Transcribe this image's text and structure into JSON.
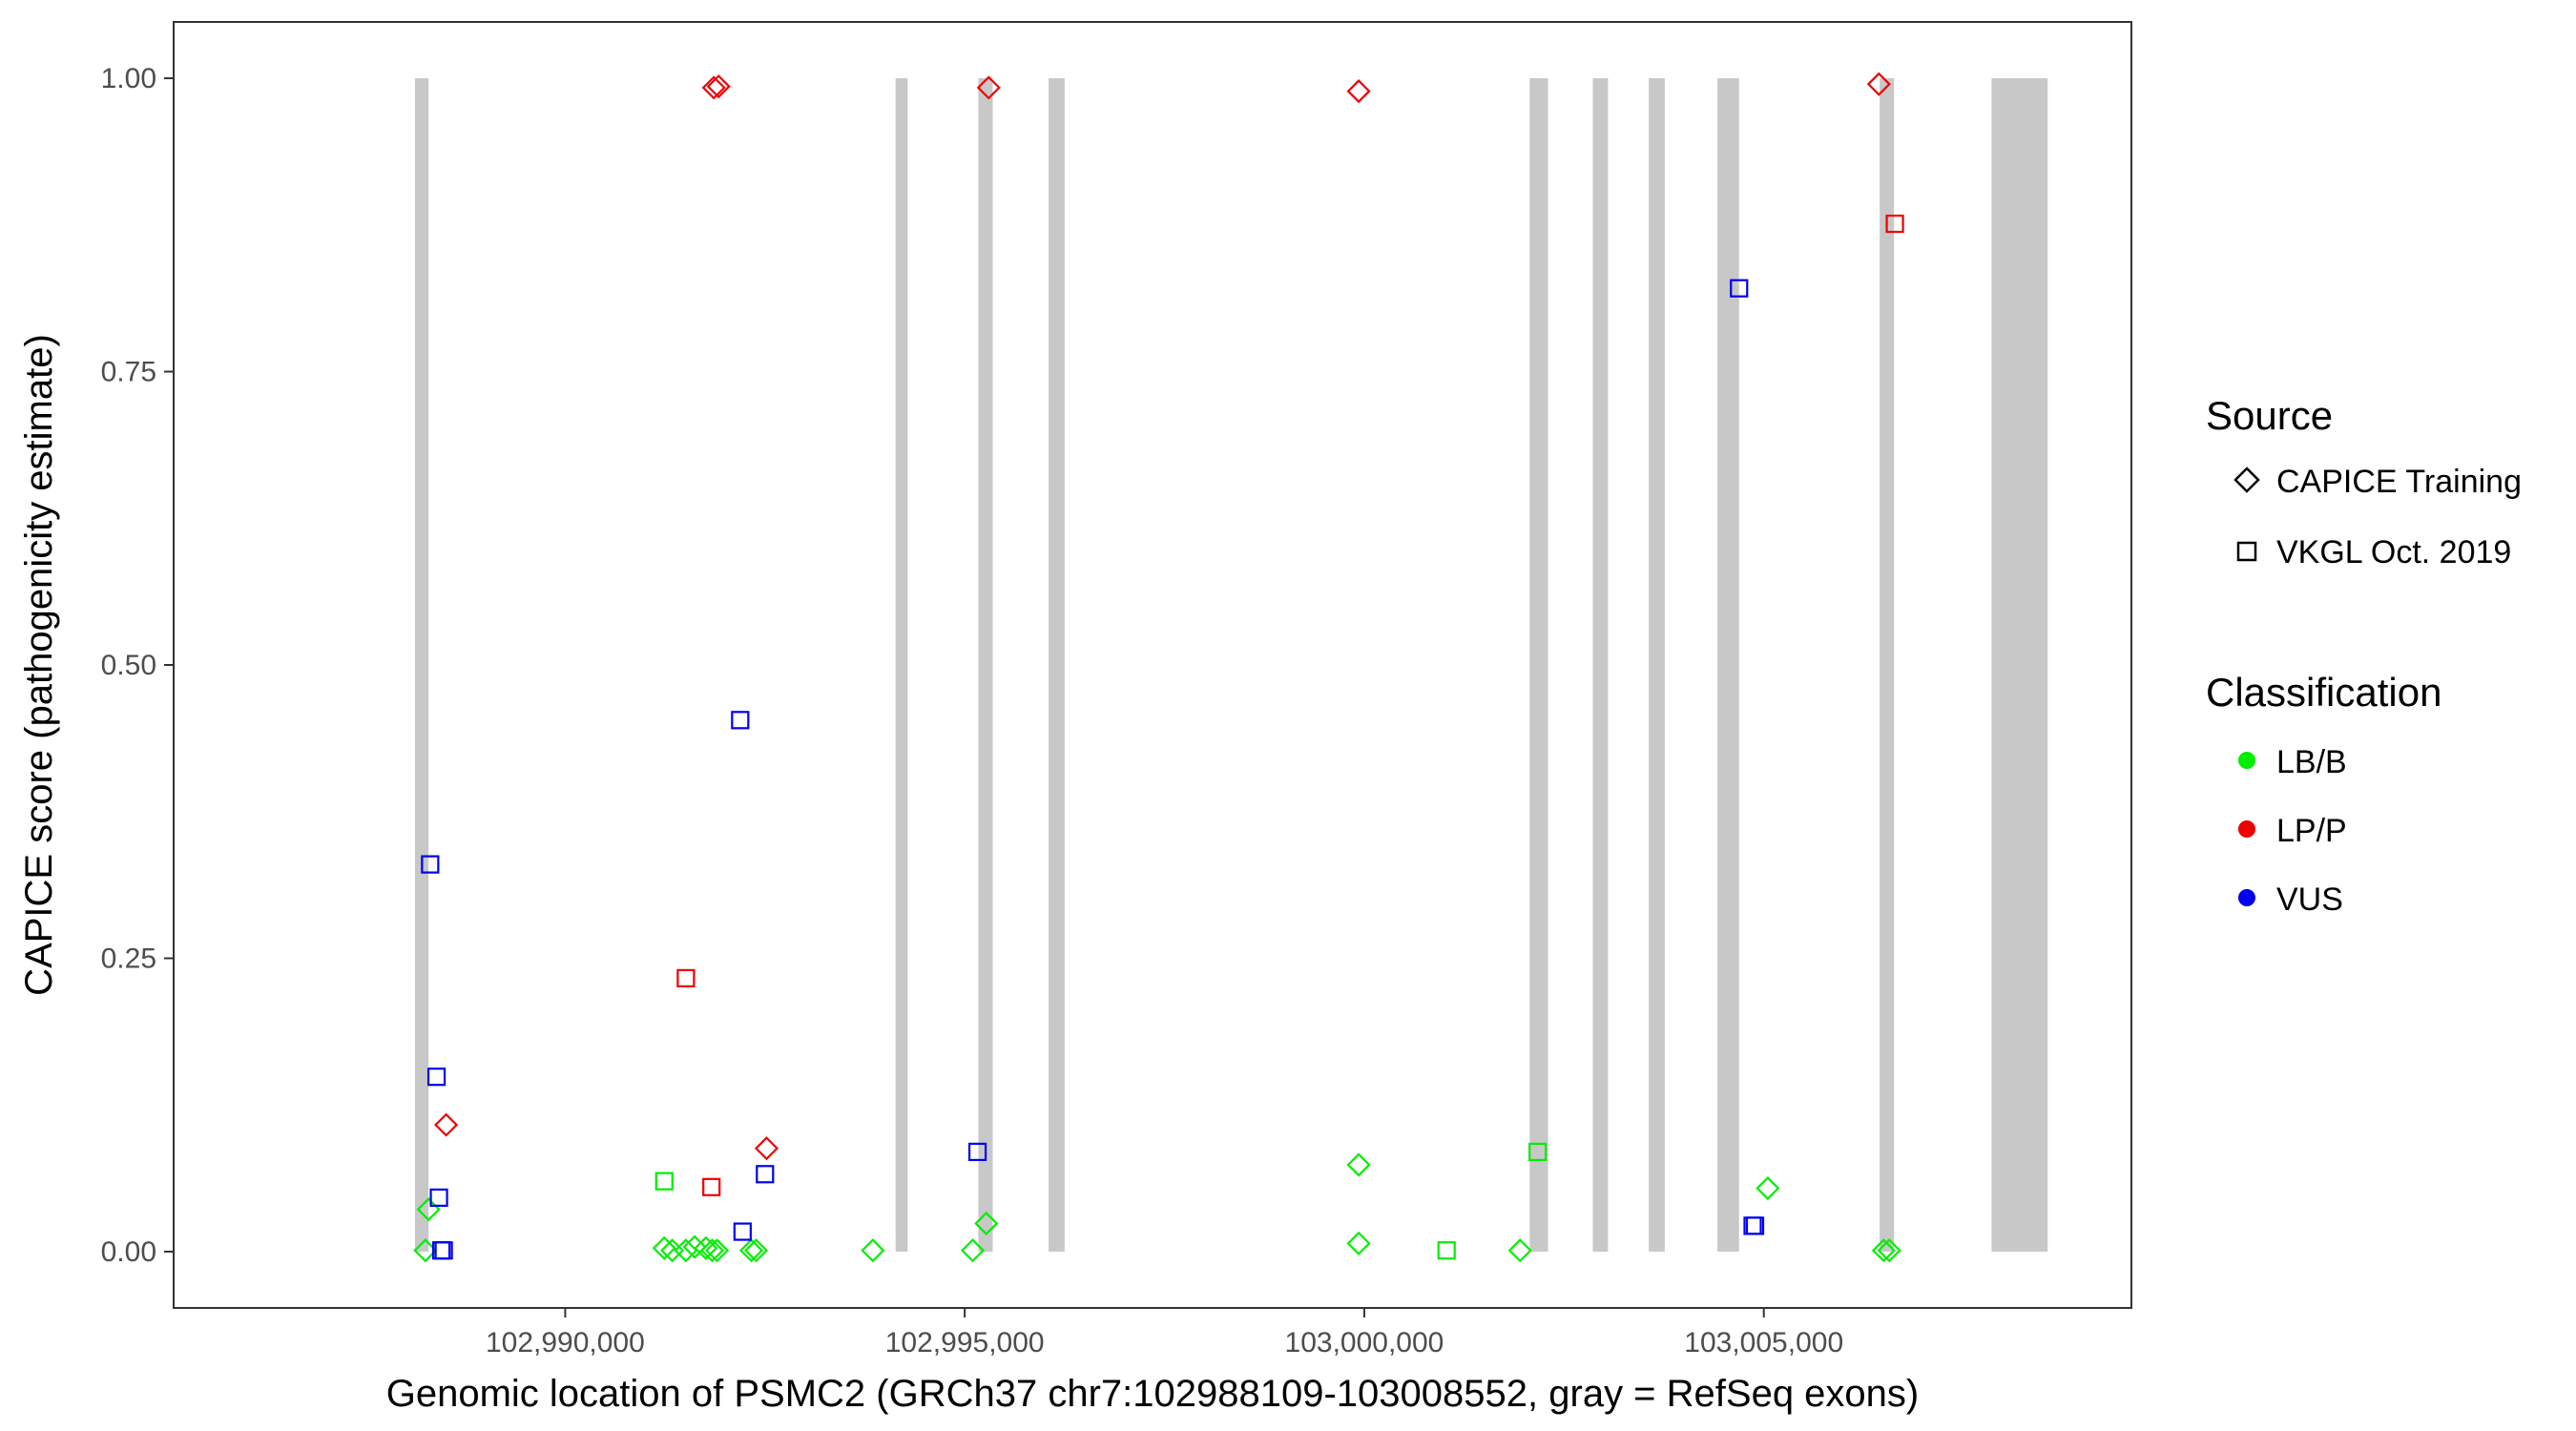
{
  "chart_data": {
    "type": "scatter",
    "title": "",
    "xlabel": "Genomic location of PSMC2 (GRCh37 chr7:102988109-103008552, gray = RefSeq exons)",
    "ylabel": "CAPICE score (pathogenicity estimate)",
    "xlim": [
      102985100,
      103009600
    ],
    "ylim": [
      -0.048,
      1.048
    ],
    "x_ticks": [
      102990000,
      102995000,
      103000000,
      103005000
    ],
    "x_tick_labels": [
      "102,990,000",
      "102,995,000",
      "103,000,000",
      "103,005,000"
    ],
    "y_ticks": [
      0,
      0.25,
      0.5,
      0.75,
      1.0
    ],
    "y_tick_labels": [
      "0.00",
      "0.25",
      "0.50",
      "0.75",
      "1.00"
    ],
    "grid": false,
    "exon_color": "#c8c8c8",
    "exons": [
      [
        102988120,
        102988290
      ],
      [
        102994135,
        102994285
      ],
      [
        102995170,
        102995350
      ],
      [
        102996050,
        102996250
      ],
      [
        103002070,
        103002300
      ],
      [
        103002860,
        103003050
      ],
      [
        103003560,
        103003760
      ],
      [
        103004420,
        103004690
      ],
      [
        103006450,
        103006630
      ],
      [
        103007850,
        103008552
      ]
    ],
    "legend": {
      "placement": "right",
      "source_title": "Source",
      "source_items": [
        {
          "label": "CAPICE Training",
          "shape": "diamond"
        },
        {
          "label": "VKGL Oct. 2019",
          "shape": "square"
        }
      ],
      "class_title": "Classification",
      "class_items": [
        {
          "label": "LB/B",
          "color": "#00ee00"
        },
        {
          "label": "LP/P",
          "color": "#ee0000"
        },
        {
          "label": "VUS",
          "color": "#0000ee"
        }
      ]
    },
    "series": [
      {
        "source": "CAPICE Training",
        "shape": "diamond",
        "class": "LB/B",
        "color": "#00ee00",
        "points": [
          [
            102988250,
            0.001
          ],
          [
            102988290,
            0.036
          ],
          [
            102991240,
            0.003
          ],
          [
            102991340,
            0.001
          ],
          [
            102991510,
            0.001
          ],
          [
            102991620,
            0.004
          ],
          [
            102991760,
            0.003
          ],
          [
            102991840,
            0.001
          ],
          [
            102991900,
            0.001
          ],
          [
            102992330,
            0.001
          ],
          [
            102992390,
            0.001
          ],
          [
            102993850,
            0.001
          ],
          [
            102995100,
            0.001
          ],
          [
            102995270,
            0.024
          ],
          [
            102999930,
            0.007
          ],
          [
            102999930,
            0.074
          ],
          [
            103001950,
            0.001
          ],
          [
            103005050,
            0.054
          ],
          [
            103006500,
            0.001
          ],
          [
            103006570,
            0.001
          ]
        ]
      },
      {
        "source": "CAPICE Training",
        "shape": "diamond",
        "class": "LP/P",
        "color": "#ee0000",
        "points": [
          [
            102988510,
            0.108
          ],
          [
            102991860,
            0.992
          ],
          [
            102991920,
            0.993
          ],
          [
            102992520,
            0.088
          ],
          [
            102995300,
            0.992
          ],
          [
            102999930,
            0.989
          ],
          [
            103006440,
            0.995
          ]
        ]
      },
      {
        "source": "VKGL Oct. 2019",
        "shape": "square",
        "class": "LB/B",
        "color": "#00ee00",
        "points": [
          [
            102991240,
            0.06
          ],
          [
            103001030,
            0.001
          ],
          [
            103002170,
            0.085
          ]
        ]
      },
      {
        "source": "VKGL Oct. 2019",
        "shape": "square",
        "class": "LP/P",
        "color": "#ee0000",
        "points": [
          [
            102991510,
            0.233
          ],
          [
            102991830,
            0.055
          ],
          [
            103006640,
            0.876
          ]
        ]
      },
      {
        "source": "VKGL Oct. 2019",
        "shape": "square",
        "class": "VUS",
        "color": "#0000ee",
        "points": [
          [
            102988310,
            0.33
          ],
          [
            102988390,
            0.149
          ],
          [
            102988420,
            0.046
          ],
          [
            102988450,
            0.001
          ],
          [
            102988480,
            0.001
          ],
          [
            102992190,
            0.453
          ],
          [
            102992220,
            0.017
          ],
          [
            102992500,
            0.066
          ],
          [
            102995160,
            0.085
          ],
          [
            103004690,
            0.821
          ],
          [
            103004860,
            0.022
          ],
          [
            103004890,
            0.022
          ]
        ]
      }
    ]
  }
}
